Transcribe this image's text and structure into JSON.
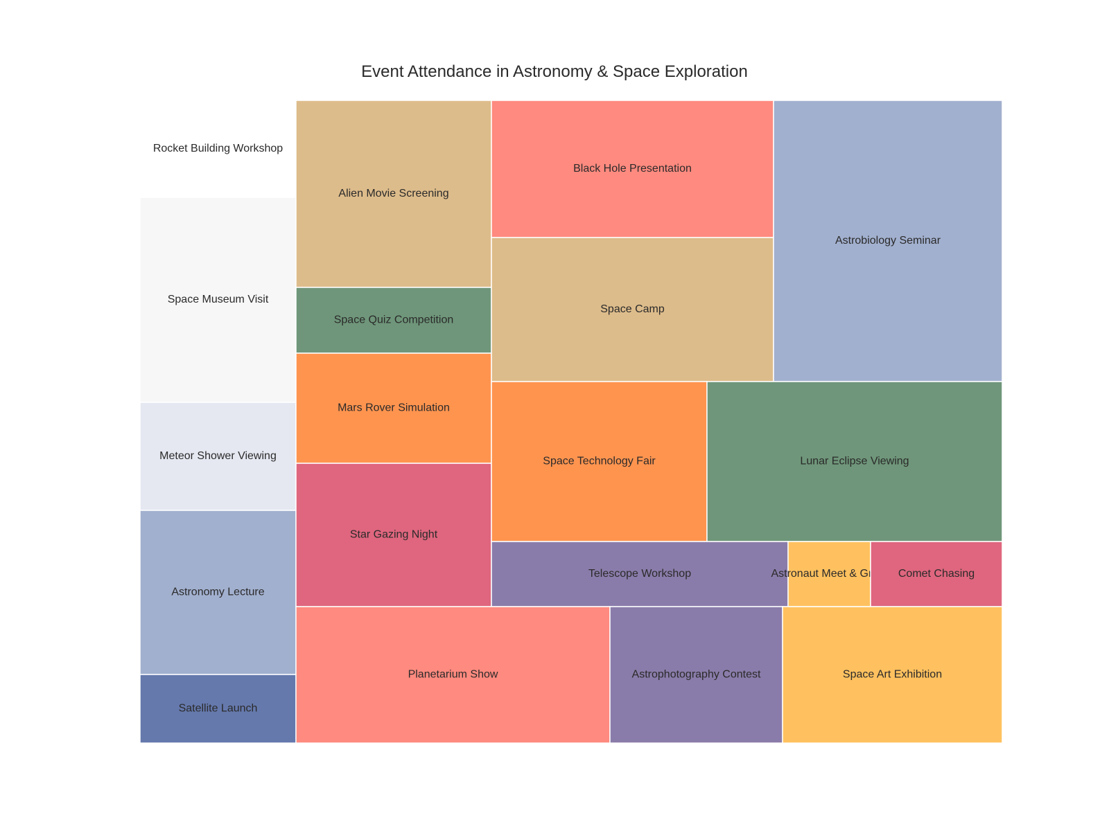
{
  "chart_data": {
    "type": "treemap",
    "title": "Event Attendance in Astronomy & Space Exploration",
    "items": [
      {
        "label": "Rocket Building Workshop",
        "value": 6.9,
        "color": "#ffffff"
      },
      {
        "label": "Space Museum Visit",
        "value": 14.8,
        "color": "#f7f7f7"
      },
      {
        "label": "Meteor Shower Viewing",
        "value": 7.8,
        "color": "#e5e8f1"
      },
      {
        "label": "Astronomy Lecture",
        "value": 11.8,
        "color": "#a2b0cf"
      },
      {
        "label": "Satellite Launch",
        "value": 4.9,
        "color": "#6579ad"
      },
      {
        "label": "Alien Movie Screening",
        "value": 16.3,
        "color": "#ddbc8b"
      },
      {
        "label": "Space Quiz Competition",
        "value": 5.7,
        "color": "#6f967a"
      },
      {
        "label": "Mars Rover Simulation",
        "value": 9.5,
        "color": "#ff944f"
      },
      {
        "label": "Star Gazing Night",
        "value": 12.4,
        "color": "#df667e"
      },
      {
        "label": "Black Hole Presentation",
        "value": 17.0,
        "color": "#ff8a7f"
      },
      {
        "label": "Space Camp",
        "value": 18.0,
        "color": "#ddbc8b"
      },
      {
        "label": "Astrobiology Seminar",
        "value": 28.2,
        "color": "#a2b0cf"
      },
      {
        "label": "Space Technology Fair",
        "value": 15.4,
        "color": "#ff944f"
      },
      {
        "label": "Lunar Eclipse Viewing",
        "value": 21.1,
        "color": "#6f967a"
      },
      {
        "label": "Telescope Workshop",
        "value": 8.4,
        "color": "#8a7caa"
      },
      {
        "label": "Astronaut Meet & Greet",
        "value": 2.4,
        "color": "#ffc15f"
      },
      {
        "label": "Comet Chasing",
        "value": 3.8,
        "color": "#df667e"
      },
      {
        "label": "Planetarium Show",
        "value": 19.0,
        "color": "#ff8a7f"
      },
      {
        "label": "Astrophotography Contest",
        "value": 10.4,
        "color": "#8a7caa"
      },
      {
        "label": "Space Art Exhibition",
        "value": 13.4,
        "color": "#ffc15f"
      }
    ]
  }
}
